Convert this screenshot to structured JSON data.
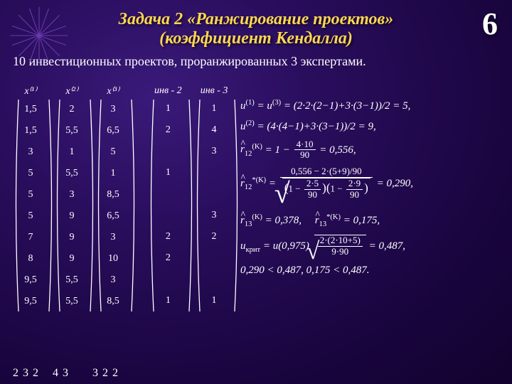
{
  "page_number": "6",
  "title_line1": "Задача 2 «Ранжирование проектов»",
  "title_line2": "(коэффициент Кендалла)",
  "subtitle": "10 инвестиционных проектов, проранжированных 3 экспертами.",
  "title_color": "#ffd750",
  "columns": {
    "headers": [
      "x⁽¹⁾",
      "x⁽²⁾",
      "x⁽³⁾",
      "инв - 2",
      "инв - 3"
    ],
    "data": [
      [
        "1,5",
        "1,5",
        "3",
        "5",
        "5",
        "5",
        "7",
        "8",
        "9,5",
        "9,5"
      ],
      [
        "2",
        "5,5",
        "1",
        "5,5",
        "3",
        "9",
        "9",
        "9",
        "5,5",
        "5,5"
      ],
      [
        "3",
        "6,5",
        "5",
        "1",
        "8,5",
        "6,5",
        "3",
        "10",
        "3",
        "8,5"
      ],
      [
        "1",
        "2",
        "",
        "1",
        "",
        "",
        "2",
        "2",
        "",
        "1"
      ],
      [
        "1",
        "4",
        "3",
        "",
        "",
        "3",
        "2",
        "",
        "",
        "1"
      ]
    ]
  },
  "footer": [
    "2 3 2",
    "4 3",
    "3 2 2"
  ],
  "formulas": {
    "u1": "u⁽¹⁾ = u⁽³⁾ = (2·2·(2−1)+3·(3−1))/2 = 5,",
    "u2": "u⁽²⁾ = (4·(4−1)+3·(3−1))/2 = 9,",
    "r12": {
      "label": "r̂₁₂⁽ᴷ⁾ = 1 −",
      "num": "4·10",
      "den": "90",
      "tail": " = 0,556,"
    },
    "r12star": {
      "label": "r̂₁₂*⁽ᴷ⁾ =",
      "topnum": "0,556 − 2·(5+9)/90",
      "left_num": "2·5",
      "left_den": "90",
      "right_num": "2·9",
      "right_den": "90",
      "tail": " = 0,290,"
    },
    "r13": "r̂₁₃⁽ᴷ⁾ = 0,378,    r̂₁₃*⁽ᴷ⁾ = 0,175,",
    "ucrit": {
      "label": "uₖᵣᵢₜ = u(0,975)",
      "num": "2·(2·10+5)",
      "den": "9·90",
      "tail": " = 0,487,"
    },
    "compare": "0,290 < 0,487,    0,175 < 0,487."
  }
}
